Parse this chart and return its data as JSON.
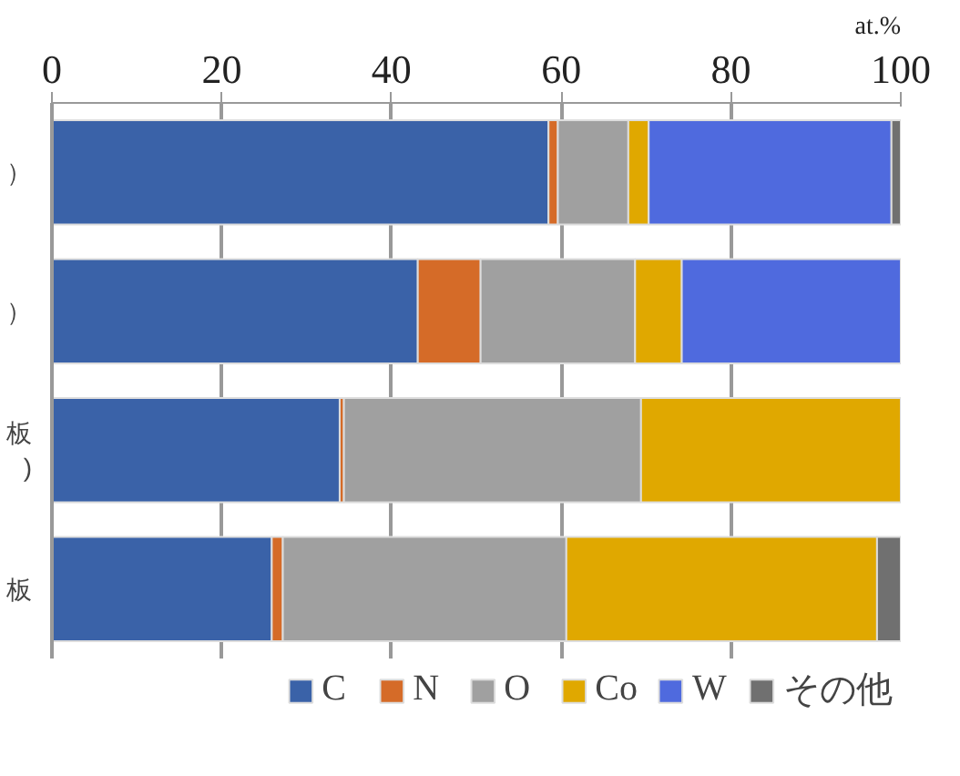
{
  "chart_data": {
    "type": "bar",
    "orientation": "horizontal",
    "stacked": true,
    "xlabel": "at.%",
    "categories": [
      "）",
      "）",
      "板\n)",
      "板"
    ],
    "xlim": [
      0,
      100
    ],
    "xticks": [
      0,
      20,
      40,
      60,
      80,
      100
    ],
    "grid": "x",
    "legend": "bottom",
    "series": [
      {
        "name": "C",
        "color": "#3a62a8",
        "values": [
          58.5,
          43.1,
          33.9,
          25.9
        ]
      },
      {
        "name": "N",
        "color": "#d56b28",
        "values": [
          1.1,
          7.4,
          0.5,
          1.3
        ]
      },
      {
        "name": "O",
        "color": "#a0a0a0",
        "values": [
          8.3,
          18.2,
          35.0,
          33.4
        ]
      },
      {
        "name": "Co",
        "color": "#e0a800",
        "values": [
          2.4,
          5.5,
          30.6,
          36.6
        ]
      },
      {
        "name": "W",
        "color": "#4f6ade",
        "values": [
          28.6,
          25.8,
          0,
          0
        ]
      },
      {
        "name": "その他",
        "color": "#707070",
        "values": [
          1.1,
          0,
          0,
          2.8
        ]
      }
    ]
  }
}
